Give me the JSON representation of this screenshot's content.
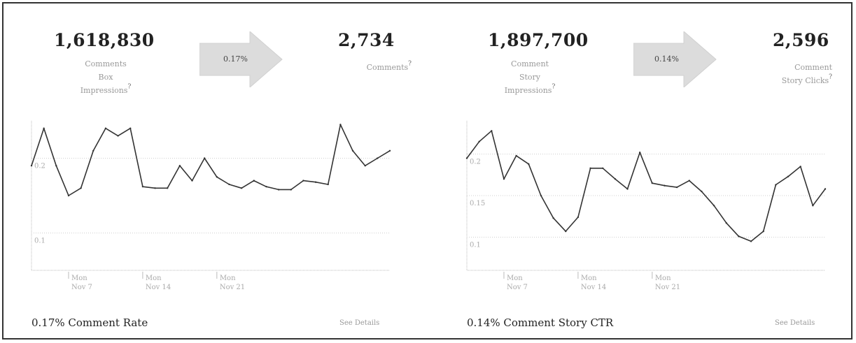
{
  "panels": [
    {
      "impressions_value": "1,618,830",
      "impressions_label": "Comments\nBox\nImpressions",
      "impressions_help": "?",
      "rate": "0.17%",
      "result_value": "2,734",
      "result_label": "Comments",
      "result_help": "?",
      "footer_title": "0.17% Comment Rate",
      "see_details": "See Details"
    },
    {
      "impressions_value": "1,897,700",
      "impressions_label": "Comment\nStory\nImpressions",
      "impressions_help": "?",
      "rate": "0.14%",
      "result_value": "2,596",
      "result_label": "Comment\nStory Clicks",
      "result_help": "?",
      "footer_title": "0.14% Comment Story CTR",
      "see_details": "See Details"
    }
  ],
  "chart_data": [
    {
      "type": "line",
      "ylim": [
        0.05,
        0.25
      ],
      "yticks": [
        0.1,
        0.2
      ],
      "ytick_labels": [
        "0.1",
        "0.2"
      ],
      "grid": true,
      "x_ticks": [
        {
          "index": 3,
          "line1": "Mon",
          "line2": "Nov 7"
        },
        {
          "index": 9,
          "line1": "Mon",
          "line2": "Nov 14"
        },
        {
          "index": 15,
          "line1": "Mon",
          "line2": "Nov 21"
        }
      ],
      "values": [
        0.19,
        0.24,
        0.19,
        0.15,
        0.16,
        0.21,
        0.24,
        0.23,
        0.24,
        0.162,
        0.16,
        0.16,
        0.19,
        0.17,
        0.2,
        0.175,
        0.165,
        0.16,
        0.17,
        0.162,
        0.158,
        0.158,
        0.17,
        0.168,
        0.165,
        0.245,
        0.21,
        0.19,
        0.2,
        0.21
      ]
    },
    {
      "type": "line",
      "ylim": [
        0.06,
        0.24
      ],
      "yticks": [
        0.1,
        0.15,
        0.2
      ],
      "ytick_labels": [
        "0.1",
        "0.15",
        "0.2"
      ],
      "grid": true,
      "x_ticks": [
        {
          "index": 3,
          "line1": "Mon",
          "line2": "Nov 7"
        },
        {
          "index": 9,
          "line1": "Mon",
          "line2": "Nov 14"
        },
        {
          "index": 15,
          "line1": "Mon",
          "line2": "Nov 21"
        }
      ],
      "values": [
        0.195,
        0.215,
        0.228,
        0.17,
        0.198,
        0.188,
        0.15,
        0.123,
        0.107,
        0.124,
        0.183,
        0.183,
        0.17,
        0.158,
        0.202,
        0.165,
        0.162,
        0.16,
        0.168,
        0.155,
        0.138,
        0.117,
        0.101,
        0.095,
        0.107,
        0.163,
        0.173,
        0.185,
        0.138,
        0.158
      ]
    }
  ]
}
